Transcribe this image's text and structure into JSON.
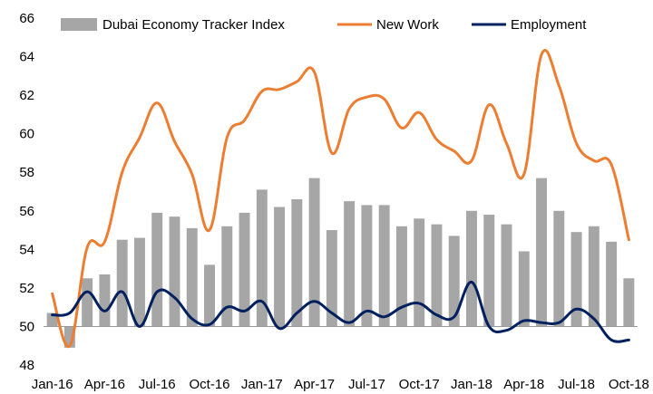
{
  "chart_data": {
    "type": "bar",
    "legend_position": "top",
    "grid": false,
    "ylim": [
      48,
      66
    ],
    "y_ticks": [
      "48",
      "50",
      "52",
      "54",
      "56",
      "58",
      "60",
      "62",
      "64",
      "66"
    ],
    "x_tick_labels": [
      "Jan-16",
      "Apr-16",
      "Jul-16",
      "Oct-16",
      "Jan-17",
      "Apr-17",
      "Jul-17",
      "Oct-17",
      "Jan-18",
      "Apr-18",
      "Jul-18",
      "Oct-18"
    ],
    "categories": [
      "Jan-16",
      "Feb-16",
      "Mar-16",
      "Apr-16",
      "May-16",
      "Jun-16",
      "Jul-16",
      "Aug-16",
      "Sep-16",
      "Oct-16",
      "Nov-16",
      "Dec-16",
      "Jan-17",
      "Feb-17",
      "Mar-17",
      "Apr-17",
      "May-17",
      "Jun-17",
      "Jul-17",
      "Aug-17",
      "Sep-17",
      "Oct-17",
      "Nov-17",
      "Dec-17",
      "Jan-18",
      "Feb-18",
      "Mar-18",
      "Apr-18",
      "May-18",
      "Jun-18",
      "Jul-18",
      "Aug-18",
      "Sep-18",
      "Oct-18"
    ],
    "baseline": 50,
    "series": [
      {
        "name": "Dubai Economy Tracker Index",
        "type": "bar",
        "color": "#a6a6a6",
        "values": [
          50.7,
          48.9,
          52.5,
          52.7,
          54.5,
          54.6,
          55.9,
          55.7,
          55.1,
          53.2,
          55.2,
          55.9,
          57.1,
          56.2,
          56.6,
          57.7,
          55.0,
          56.5,
          56.3,
          56.3,
          55.2,
          55.6,
          55.3,
          54.7,
          56.0,
          55.8,
          55.3,
          53.9,
          57.7,
          56.0,
          54.9,
          55.2,
          54.4,
          52.5
        ]
      },
      {
        "name": "New Work",
        "type": "line",
        "color": "#ed7d31",
        "values": [
          51.7,
          49.0,
          54.1,
          54.4,
          58.0,
          59.8,
          61.6,
          59.6,
          57.9,
          55.0,
          59.8,
          60.7,
          62.2,
          62.3,
          62.7,
          63.2,
          59.0,
          61.3,
          61.9,
          61.8,
          60.3,
          61.1,
          59.7,
          59.1,
          58.6,
          61.5,
          59.5,
          57.9,
          64.1,
          62.5,
          59.5,
          58.6,
          58.4,
          54.5
        ]
      },
      {
        "name": "Employment",
        "type": "line",
        "color": "#002060",
        "values": [
          50.6,
          50.7,
          51.8,
          50.8,
          51.8,
          50.0,
          51.8,
          51.5,
          50.4,
          50.1,
          51.0,
          50.8,
          51.3,
          49.9,
          50.7,
          51.3,
          50.7,
          50.2,
          50.8,
          50.5,
          51.0,
          51.2,
          50.6,
          50.5,
          52.3,
          50.0,
          49.8,
          50.3,
          50.2,
          50.2,
          50.9,
          50.4,
          49.3,
          49.3
        ]
      }
    ]
  }
}
